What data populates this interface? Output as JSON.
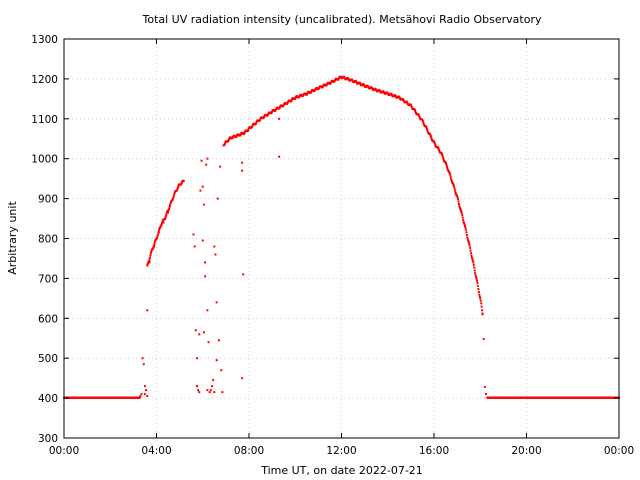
{
  "chart_data": {
    "type": "scatter",
    "title": "Total UV radiation intensity (uncalibrated). Metsähovi Radio Observatory",
    "xlabel": "Time UT, on date 2022-07-21",
    "ylabel": "Arbitrary unit",
    "xlim": [
      0,
      24
    ],
    "ylim": [
      300,
      1300
    ],
    "x_ticks": [
      {
        "value": 0,
        "label": "00:00"
      },
      {
        "value": 4,
        "label": "04:00"
      },
      {
        "value": 8,
        "label": "08:00"
      },
      {
        "value": 12,
        "label": "12:00"
      },
      {
        "value": 16,
        "label": "16:00"
      },
      {
        "value": 20,
        "label": "20:00"
      },
      {
        "value": 24,
        "label": "00:00"
      }
    ],
    "y_ticks": [
      300,
      400,
      500,
      600,
      700,
      800,
      900,
      1000,
      1100,
      1200,
      1300
    ],
    "grid": true,
    "marker_color": "#ff0000",
    "baseline": {
      "value": 401,
      "ranges": [
        [
          0,
          3.3
        ],
        [
          18.3,
          24
        ]
      ]
    },
    "main_curve": [
      [
        3.6,
        730
      ],
      [
        3.8,
        770
      ],
      [
        4.0,
        800
      ],
      [
        4.2,
        835
      ],
      [
        4.4,
        855
      ],
      [
        4.6,
        885
      ],
      [
        4.8,
        915
      ],
      [
        5.0,
        935
      ],
      [
        5.2,
        945
      ],
      [
        6.9,
        1035
      ],
      [
        7.2,
        1052
      ],
      [
        7.5,
        1058
      ],
      [
        7.8,
        1065
      ],
      [
        8.0,
        1075
      ],
      [
        8.5,
        1100
      ],
      [
        9.0,
        1118
      ],
      [
        9.5,
        1135
      ],
      [
        10.0,
        1153
      ],
      [
        10.5,
        1163
      ],
      [
        11.0,
        1177
      ],
      [
        11.5,
        1190
      ],
      [
        12.0,
        1205
      ],
      [
        12.5,
        1195
      ],
      [
        13.0,
        1183
      ],
      [
        13.5,
        1172
      ],
      [
        14.0,
        1163
      ],
      [
        14.5,
        1153
      ],
      [
        15.0,
        1133
      ],
      [
        15.5,
        1095
      ],
      [
        16.0,
        1040
      ],
      [
        16.3,
        1015
      ],
      [
        16.6,
        975
      ],
      [
        17.0,
        905
      ],
      [
        17.3,
        840
      ],
      [
        17.6,
        765
      ],
      [
        17.8,
        710
      ],
      [
        18.0,
        650
      ],
      [
        18.1,
        612
      ]
    ],
    "scattered_points": [
      [
        3.3,
        405
      ],
      [
        3.35,
        410
      ],
      [
        3.4,
        500
      ],
      [
        3.45,
        485
      ],
      [
        3.5,
        430
      ],
      [
        3.5,
        410
      ],
      [
        3.55,
        420
      ],
      [
        3.6,
        405
      ],
      [
        3.6,
        620
      ],
      [
        3.7,
        740
      ],
      [
        3.9,
        780
      ],
      [
        4.1,
        815
      ],
      [
        4.3,
        840
      ],
      [
        4.5,
        865
      ],
      [
        5.6,
        810
      ],
      [
        5.65,
        780
      ],
      [
        5.7,
        570
      ],
      [
        5.75,
        500
      ],
      [
        5.75,
        430
      ],
      [
        5.8,
        420
      ],
      [
        5.85,
        415
      ],
      [
        5.85,
        560
      ],
      [
        5.9,
        920
      ],
      [
        5.95,
        995
      ],
      [
        6.0,
        930
      ],
      [
        6.0,
        795
      ],
      [
        6.05,
        885
      ],
      [
        6.05,
        565
      ],
      [
        6.1,
        740
      ],
      [
        6.1,
        705
      ],
      [
        6.15,
        985
      ],
      [
        6.2,
        1000
      ],
      [
        6.2,
        620
      ],
      [
        6.25,
        540
      ],
      [
        6.3,
        415
      ],
      [
        6.35,
        420
      ],
      [
        6.4,
        430
      ],
      [
        6.45,
        445
      ],
      [
        6.5,
        415
      ],
      [
        6.5,
        780
      ],
      [
        6.55,
        760
      ],
      [
        6.6,
        640
      ],
      [
        6.6,
        495
      ],
      [
        6.65,
        900
      ],
      [
        6.7,
        545
      ],
      [
        6.75,
        980
      ],
      [
        6.8,
        470
      ],
      [
        6.85,
        415
      ],
      [
        6.2,
        420
      ],
      [
        7.7,
        990
      ],
      [
        7.7,
        970
      ],
      [
        7.75,
        710
      ],
      [
        7.7,
        450
      ],
      [
        9.3,
        1005
      ],
      [
        9.3,
        1100
      ],
      [
        18.1,
        610
      ],
      [
        18.15,
        548
      ],
      [
        18.2,
        428
      ],
      [
        18.25,
        410
      ]
    ]
  }
}
